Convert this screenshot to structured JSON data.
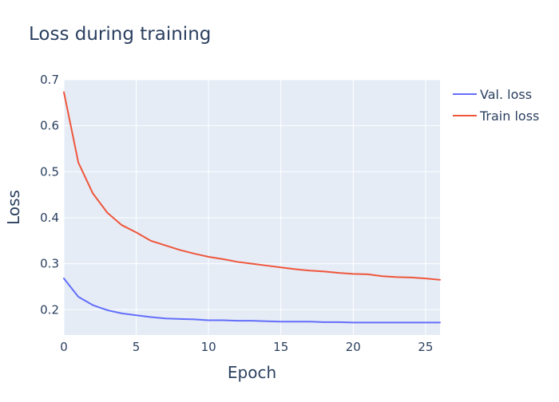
{
  "chart_data": {
    "type": "line",
    "title": "Loss during training",
    "xlabel": "Epoch",
    "ylabel": "Loss",
    "xlim": [
      0,
      26
    ],
    "ylim": [
      0.145,
      0.7
    ],
    "x_ticks": [
      0,
      5,
      10,
      15,
      20,
      25
    ],
    "y_ticks": [
      0.2,
      0.3,
      0.4,
      0.5,
      0.6,
      0.7
    ],
    "x_tick_labels": [
      "0",
      "5",
      "10",
      "15",
      "20",
      "25"
    ],
    "y_tick_labels": [
      "0.2",
      "0.3",
      "0.4",
      "0.5",
      "0.6",
      "0.7"
    ],
    "grid": true,
    "legend_position": "top-right outside",
    "plot_background": "#e5ecf6",
    "gridline_color": "#ffffff",
    "x": [
      0,
      1,
      2,
      3,
      4,
      5,
      6,
      7,
      8,
      9,
      10,
      11,
      12,
      13,
      14,
      15,
      16,
      17,
      18,
      19,
      20,
      21,
      22,
      23,
      24,
      25,
      26
    ],
    "series": [
      {
        "name": "Val. loss",
        "color": "#636efa",
        "values": [
          0.268,
          0.228,
          0.21,
          0.199,
          0.192,
          0.188,
          0.184,
          0.181,
          0.18,
          0.179,
          0.177,
          0.177,
          0.176,
          0.176,
          0.175,
          0.174,
          0.174,
          0.174,
          0.173,
          0.173,
          0.172,
          0.172,
          0.172,
          0.172,
          0.172,
          0.172,
          0.172
        ]
      },
      {
        "name": "Train loss",
        "color": "#ef553b",
        "values": [
          0.673,
          0.52,
          0.453,
          0.411,
          0.384,
          0.368,
          0.35,
          0.34,
          0.33,
          0.322,
          0.315,
          0.31,
          0.304,
          0.3,
          0.296,
          0.292,
          0.288,
          0.285,
          0.283,
          0.28,
          0.278,
          0.277,
          0.273,
          0.271,
          0.27,
          0.268,
          0.265
        ]
      }
    ]
  }
}
